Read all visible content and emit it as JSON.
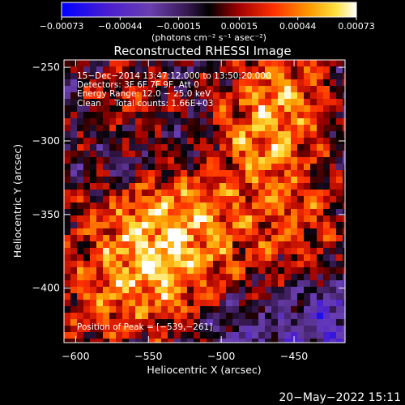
{
  "chart_data": {
    "type": "heatmap",
    "title": "Reconstructed RHESSI Image",
    "xlabel": "Heliocentric X (arcsec)",
    "ylabel": "Heliocentric Y (arcsec)",
    "xlim": [
      -608,
      -415
    ],
    "ylim": [
      -437,
      -245
    ],
    "x_ticks": [
      -600,
      -550,
      -500,
      -450
    ],
    "x_tick_labels": [
      "−600",
      "−550",
      "−500",
      "−450"
    ],
    "y_ticks": [
      -250,
      -300,
      -350,
      -400
    ],
    "y_tick_labels": [
      "−250",
      "−300",
      "−350",
      "−400"
    ],
    "colorbar": {
      "min": -0.00073,
      "max": 0.00073,
      "ticks": [
        -0.00073,
        -0.00044,
        -0.00015,
        0.00015,
        0.00044,
        0.00073
      ],
      "tick_labels": [
        "−0.00073",
        "−0.00044",
        "−0.00015",
        "0.00015",
        "0.00044",
        "0.00073"
      ],
      "unit_label": "(photons cm⁻² s⁻¹ asec⁻²)"
    },
    "annotations": [
      "15−Dec−2014 13:47:12.000 to 13:50:20.000",
      "Detectors: 3F 6F 7F 9F, Att 0",
      "Energy Range: 12.0 − 25.0 keV",
      "Clean     Total counts: 1.66E+03"
    ],
    "peak_label": "Position of Peak = [−539,−261]",
    "peak": [
      -539,
      -261
    ]
  },
  "footer": {
    "timestamp": "20−May−2022 15:11"
  }
}
